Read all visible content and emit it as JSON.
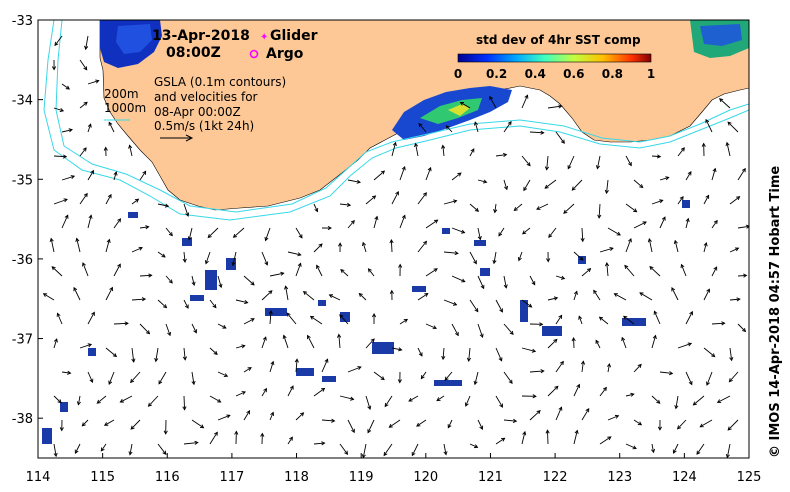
{
  "date": "13-Apr-2018",
  "time": "08:00Z",
  "legend": {
    "glider": "Glider",
    "argo": "Argo",
    "glider_color": "#ff00ff",
    "argo_color": "#ff00ff"
  },
  "annotations": {
    "depth_200": "200m",
    "depth_1000": "1000m",
    "gsla_line1": "GSLA (0.1m contours)",
    "gsla_line2": "and velocities for",
    "gsla_line3": "08-Apr 00:00Z",
    "scale_text": "0.5m/s (1kt 24h)"
  },
  "colorbar": {
    "title": "std dev of 4hr SST comp",
    "ticks": [
      "0",
      "0.2",
      "0.4",
      "0.6",
      "0.8",
      "1"
    ],
    "range": [
      0,
      1
    ]
  },
  "axes": {
    "x_ticks": [
      "114",
      "115",
      "116",
      "117",
      "118",
      "119",
      "120",
      "121",
      "122",
      "123",
      "124",
      "125"
    ],
    "y_ticks": [
      "-33",
      "-34",
      "-35",
      "-36",
      "-37",
      "-38"
    ],
    "lon_range": [
      114,
      125
    ],
    "lat_range": [
      -38.5,
      -33
    ]
  },
  "credit": "© IMOS 14-Apr-2018 04:57 Hobart Time",
  "colors": {
    "land": "#fdc896",
    "contour": "#38d8e8",
    "arrow": "#000000"
  }
}
